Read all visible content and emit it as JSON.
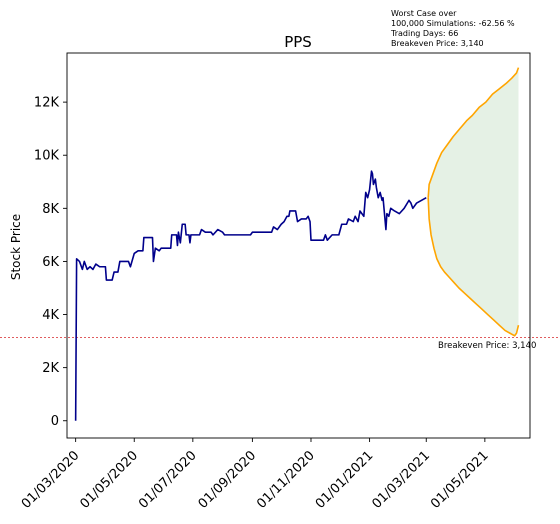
{
  "chart_data": {
    "type": "line",
    "title": "PPS",
    "xlabel": "",
    "ylabel": "Stock Price",
    "x_tick_labels": [
      "01/03/2020",
      "01/05/2020",
      "01/07/2020",
      "01/09/2020",
      "01/11/2020",
      "01/01/2021",
      "01/03/2021",
      "01/05/2021"
    ],
    "x_tick_dates": [
      "2020-03-01",
      "2020-05-01",
      "2020-07-01",
      "2020-09-01",
      "2020-11-01",
      "2021-01-01",
      "2021-03-01",
      "2021-05-01"
    ],
    "y_tick_labels": [
      "0",
      "2K",
      "4K",
      "6K",
      "8K",
      "10K",
      "12K"
    ],
    "y_tick_values": [
      0,
      2000,
      4000,
      6000,
      8000,
      10000,
      12000
    ],
    "xlim": [
      "2020-02-21",
      "2021-06-17"
    ],
    "ylim": [
      -650,
      13850
    ],
    "grid": false,
    "annotation": {
      "lines": [
        "Worst Case over",
        "100,000 Simulations: -62.56 %",
        "Trading Days: 66",
        "Breakeven Price: 3,140"
      ]
    },
    "breakeven": {
      "value": 3140,
      "label": "Breakeven Price: 3,140",
      "color": "#d62728"
    },
    "series": [
      {
        "role": "history",
        "color": "#00008b",
        "points": [
          [
            "2020-03-01",
            0
          ],
          [
            "2020-03-02",
            6100
          ],
          [
            "2020-03-05",
            6000
          ],
          [
            "2020-03-08",
            5700
          ],
          [
            "2020-03-10",
            6000
          ],
          [
            "2020-03-13",
            5700
          ],
          [
            "2020-03-16",
            5800
          ],
          [
            "2020-03-19",
            5700
          ],
          [
            "2020-03-22",
            5900
          ],
          [
            "2020-03-26",
            5800
          ],
          [
            "2020-04-01",
            5800
          ],
          [
            "2020-04-02",
            5300
          ],
          [
            "2020-04-08",
            5300
          ],
          [
            "2020-04-10",
            5600
          ],
          [
            "2020-04-14",
            5600
          ],
          [
            "2020-04-16",
            6000
          ],
          [
            "2020-04-25",
            6000
          ],
          [
            "2020-04-27",
            5800
          ],
          [
            "2020-05-01",
            6300
          ],
          [
            "2020-05-05",
            6400
          ],
          [
            "2020-05-10",
            6400
          ],
          [
            "2020-05-11",
            6900
          ],
          [
            "2020-05-20",
            6900
          ],
          [
            "2020-05-21",
            6000
          ],
          [
            "2020-05-23",
            6500
          ],
          [
            "2020-05-27",
            6400
          ],
          [
            "2020-05-29",
            6500
          ],
          [
            "2020-06-08",
            6500
          ],
          [
            "2020-06-09",
            7000
          ],
          [
            "2020-06-14",
            7000
          ],
          [
            "2020-06-15",
            6600
          ],
          [
            "2020-06-16",
            7100
          ],
          [
            "2020-06-18",
            6700
          ],
          [
            "2020-06-20",
            7400
          ],
          [
            "2020-06-23",
            7400
          ],
          [
            "2020-06-24",
            7000
          ],
          [
            "2020-06-27",
            7000
          ],
          [
            "2020-06-28",
            6700
          ],
          [
            "2020-06-29",
            7000
          ],
          [
            "2020-07-08",
            7000
          ],
          [
            "2020-07-10",
            7200
          ],
          [
            "2020-07-14",
            7100
          ],
          [
            "2020-07-20",
            7100
          ],
          [
            "2020-07-22",
            7000
          ],
          [
            "2020-07-27",
            7200
          ],
          [
            "2020-08-01",
            7100
          ],
          [
            "2020-08-03",
            7000
          ],
          [
            "2020-08-30",
            7000
          ],
          [
            "2020-09-01",
            7100
          ],
          [
            "2020-09-21",
            7100
          ],
          [
            "2020-09-23",
            7300
          ],
          [
            "2020-09-27",
            7200
          ],
          [
            "2020-10-01",
            7400
          ],
          [
            "2020-10-04",
            7500
          ],
          [
            "2020-10-07",
            7700
          ],
          [
            "2020-10-09",
            7700
          ],
          [
            "2020-10-10",
            7900
          ],
          [
            "2020-10-16",
            7900
          ],
          [
            "2020-10-18",
            7500
          ],
          [
            "2020-10-22",
            7600
          ],
          [
            "2020-10-27",
            7600
          ],
          [
            "2020-10-29",
            7700
          ],
          [
            "2020-10-31",
            7500
          ],
          [
            "2020-11-01",
            6800
          ],
          [
            "2020-11-14",
            6800
          ],
          [
            "2020-11-16",
            7000
          ],
          [
            "2020-11-18",
            6800
          ],
          [
            "2020-11-23",
            7000
          ],
          [
            "2020-11-30",
            7000
          ],
          [
            "2020-12-03",
            7400
          ],
          [
            "2020-12-08",
            7400
          ],
          [
            "2020-12-10",
            7600
          ],
          [
            "2020-12-15",
            7500
          ],
          [
            "2020-12-17",
            7700
          ],
          [
            "2020-12-20",
            7500
          ],
          [
            "2020-12-22",
            7900
          ],
          [
            "2020-12-26",
            7700
          ],
          [
            "2020-12-28",
            8600
          ],
          [
            "2020-12-30",
            8400
          ],
          [
            "2021-01-01",
            8700
          ],
          [
            "2021-01-03",
            9400
          ],
          [
            "2021-01-04",
            9300
          ],
          [
            "2021-01-05",
            8900
          ],
          [
            "2021-01-07",
            9100
          ],
          [
            "2021-01-08",
            8800
          ],
          [
            "2021-01-10",
            8400
          ],
          [
            "2021-01-12",
            8600
          ],
          [
            "2021-01-14",
            8300
          ],
          [
            "2021-01-15",
            8400
          ],
          [
            "2021-01-18",
            7200
          ],
          [
            "2021-01-19",
            7800
          ],
          [
            "2021-01-21",
            7700
          ],
          [
            "2021-01-23",
            8000
          ],
          [
            "2021-01-27",
            7900
          ],
          [
            "2021-02-01",
            7800
          ],
          [
            "2021-02-06",
            8000
          ],
          [
            "2021-02-11",
            8300
          ],
          [
            "2021-02-13",
            8200
          ],
          [
            "2021-02-15",
            8000
          ],
          [
            "2021-02-19",
            8200
          ],
          [
            "2021-03-01",
            8400
          ]
        ]
      },
      {
        "role": "simulation-upper",
        "color": "#ffa500",
        "points": [
          [
            "2021-03-03",
            8400
          ],
          [
            "2021-03-04",
            8900
          ],
          [
            "2021-03-08",
            9300
          ],
          [
            "2021-03-12",
            9700
          ],
          [
            "2021-03-17",
            10100
          ],
          [
            "2021-03-23",
            10400
          ],
          [
            "2021-03-29",
            10700
          ],
          [
            "2021-04-05",
            11000
          ],
          [
            "2021-04-12",
            11300
          ],
          [
            "2021-04-18",
            11500
          ],
          [
            "2021-04-25",
            11800
          ],
          [
            "2021-05-02",
            12000
          ],
          [
            "2021-05-09",
            12300
          ],
          [
            "2021-05-16",
            12500
          ],
          [
            "2021-05-23",
            12700
          ],
          [
            "2021-05-29",
            12900
          ],
          [
            "2021-06-03",
            13100
          ],
          [
            "2021-06-05",
            13300
          ]
        ]
      },
      {
        "role": "simulation-lower",
        "color": "#ffa500",
        "points": [
          [
            "2021-03-03",
            8400
          ],
          [
            "2021-03-04",
            7600
          ],
          [
            "2021-03-06",
            7000
          ],
          [
            "2021-03-09",
            6500
          ],
          [
            "2021-03-12",
            6100
          ],
          [
            "2021-03-16",
            5800
          ],
          [
            "2021-03-20",
            5600
          ],
          [
            "2021-03-25",
            5400
          ],
          [
            "2021-03-30",
            5200
          ],
          [
            "2021-04-04",
            5000
          ],
          [
            "2021-04-10",
            4800
          ],
          [
            "2021-04-16",
            4600
          ],
          [
            "2021-04-22",
            4400
          ],
          [
            "2021-04-28",
            4200
          ],
          [
            "2021-05-04",
            4000
          ],
          [
            "2021-05-10",
            3800
          ],
          [
            "2021-05-16",
            3600
          ],
          [
            "2021-05-22",
            3400
          ],
          [
            "2021-05-27",
            3300
          ],
          [
            "2021-06-01",
            3200
          ],
          [
            "2021-06-03",
            3300
          ],
          [
            "2021-06-05",
            3600
          ]
        ]
      }
    ],
    "band_color": "#e5f1e5"
  }
}
